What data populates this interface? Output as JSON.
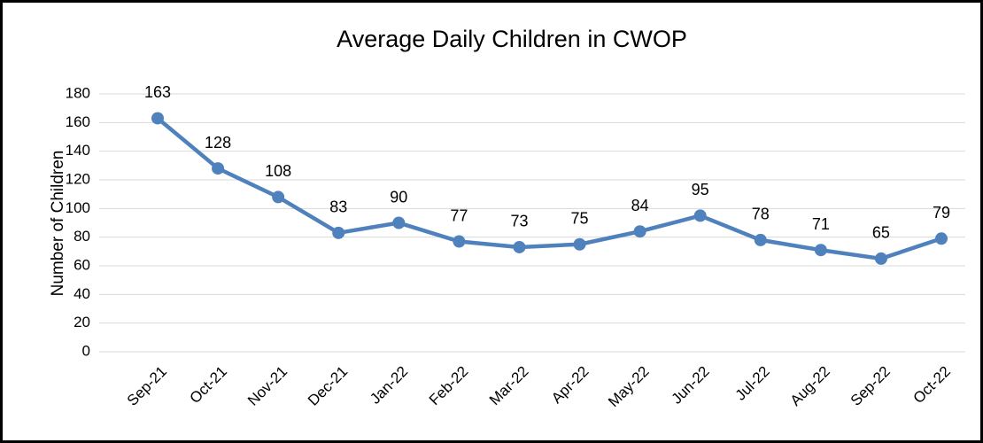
{
  "chart_data": {
    "type": "line",
    "title": "Average Daily Children in CWOP",
    "y_label": "Number of Children",
    "categories": [
      "Sep-21",
      "Oct-21",
      "Nov-21",
      "Dec-21",
      "Jan-22",
      "Feb-22",
      "Mar-22",
      "Apr-22",
      "May-22",
      "Jun-22",
      "Jul-22",
      "Aug-22",
      "Sep-22",
      "Oct-22"
    ],
    "values": [
      163,
      128,
      108,
      83,
      90,
      77,
      73,
      75,
      84,
      95,
      78,
      71,
      65,
      79
    ],
    "color": "#4f81bd",
    "ylim": [
      0,
      180
    ],
    "yticks": [
      0,
      20,
      40,
      60,
      80,
      100,
      120,
      140,
      160,
      180
    ],
    "grid": true,
    "data_labels": true
  }
}
